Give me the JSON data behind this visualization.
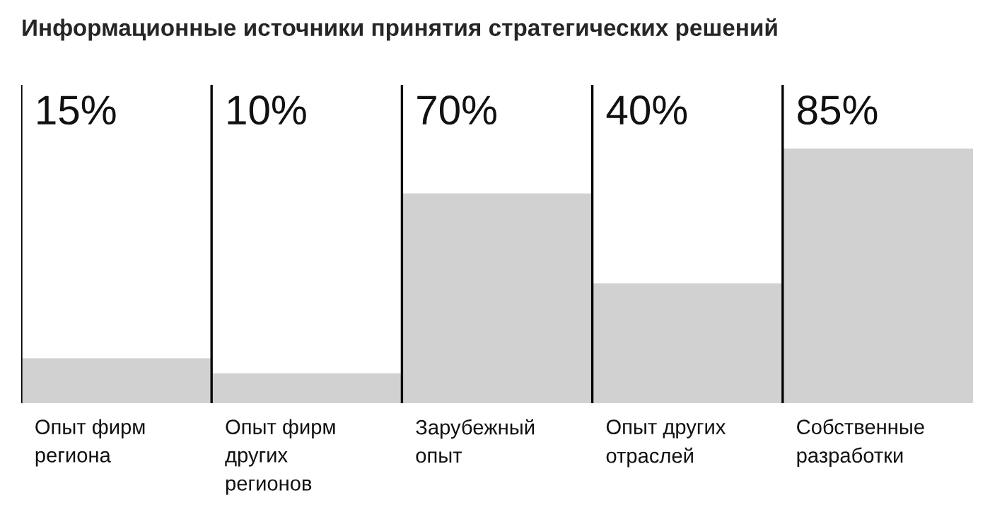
{
  "chart_data": {
    "type": "bar",
    "title": "Информационные источники принятия стратегических решений",
    "categories": [
      "Опыт фирм\nрегиона",
      "Опыт фирм\nдругих\nрегионов",
      "Зарубежный\nопыт",
      "Опыт других\nотраслей",
      "Собственные\nразработки"
    ],
    "values": [
      15,
      10,
      70,
      40,
      85
    ],
    "value_labels": [
      "15%",
      "10%",
      "70%",
      "40%",
      "85%"
    ],
    "color": "#d1d1d1"
  }
}
